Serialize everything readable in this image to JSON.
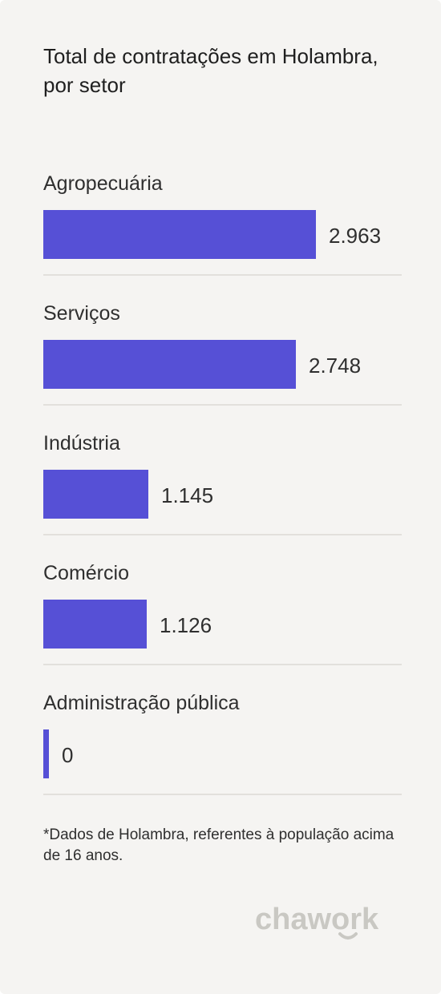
{
  "title": "Total de contratações em Holambra, por setor",
  "footnote": "*Dados de Holambra, referentes à população acima de 16 anos.",
  "logo_text": "chawork",
  "colors": {
    "bar": "#5650d6",
    "background": "#f5f4f2",
    "divider": "#e2e0dc",
    "logo": "#c9c8c3"
  },
  "chart_data": {
    "type": "bar",
    "orientation": "horizontal",
    "title": "Total de contratações em Holambra, por setor",
    "categories": [
      "Agropecuária",
      "Serviços",
      "Indústria",
      "Comércio",
      "Administração pública"
    ],
    "values": [
      2963,
      2748,
      1145,
      1126,
      0
    ],
    "value_labels": [
      "2.963",
      "2.748",
      "1.145",
      "1.126",
      "0"
    ],
    "xlim": [
      0,
      3900
    ],
    "grid": false,
    "legend": "none"
  }
}
